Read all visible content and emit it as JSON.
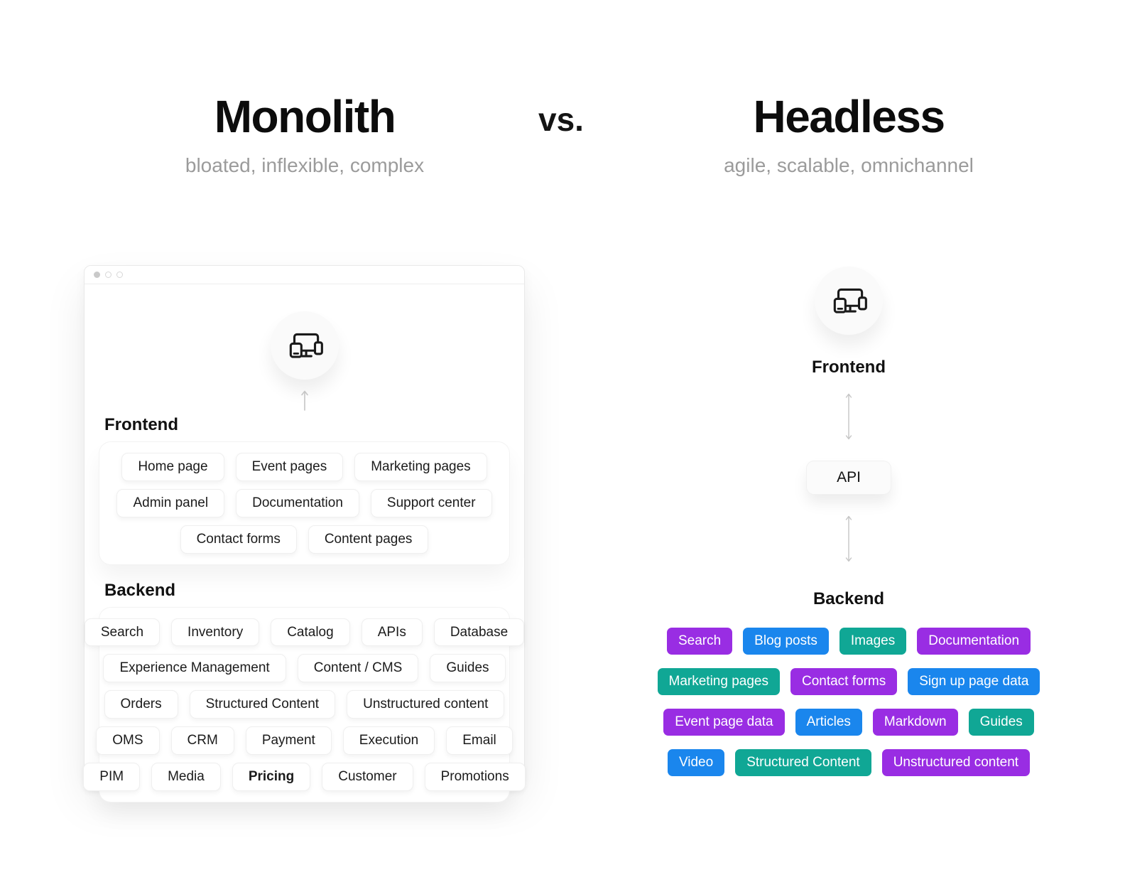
{
  "comparison": {
    "left": {
      "title": "Monolith",
      "subtitle": "bloated, inflexible, complex"
    },
    "separator": "vs.",
    "right": {
      "title": "Headless",
      "subtitle": "agile, scalable, omnichannel"
    }
  },
  "monolith_window": {
    "frontend_label": "Frontend",
    "backend_label": "Backend",
    "frontend_modules": [
      [
        "Home page",
        "Event pages",
        "Marketing pages"
      ],
      [
        "Admin panel",
        "Documentation",
        "Support center"
      ],
      [
        "Contact forms",
        "Content pages"
      ]
    ],
    "backend_modules": [
      [
        "Search",
        "Inventory",
        "Catalog",
        "APIs",
        "Database"
      ],
      [
        "Experience Management",
        "Content / CMS",
        "Guides"
      ],
      [
        "Orders",
        "Structured Content",
        "Unstructured content"
      ],
      [
        "OMS",
        "CRM",
        "Payment",
        "Execution",
        "Email"
      ],
      [
        "PIM",
        "Media",
        {
          "label": "Pricing",
          "emphasis": true
        },
        "Customer",
        "Promotions"
      ]
    ]
  },
  "headless_stack": {
    "frontend_label": "Frontend",
    "api_label": "API",
    "backend_label": "Backend",
    "content_chips": [
      [
        {
          "label": "Search",
          "color": "purple"
        },
        {
          "label": "Blog posts",
          "color": "blue"
        },
        {
          "label": "Images",
          "color": "teal"
        },
        {
          "label": "Documentation",
          "color": "purple"
        }
      ],
      [
        {
          "label": "Marketing pages",
          "color": "teal"
        },
        {
          "label": "Contact forms",
          "color": "purple"
        },
        {
          "label": "Sign up page data",
          "color": "blue"
        }
      ],
      [
        {
          "label": "Event page data",
          "color": "purple"
        },
        {
          "label": "Articles",
          "color": "blue"
        },
        {
          "label": "Markdown",
          "color": "purple"
        },
        {
          "label": "Guides",
          "color": "teal"
        }
      ],
      [
        {
          "label": "Video",
          "color": "blue"
        },
        {
          "label": "Structured Content",
          "color": "teal"
        },
        {
          "label": "Unstructured content",
          "color": "purple"
        }
      ]
    ]
  },
  "colors": {
    "purple": "#992DE3",
    "blue": "#1A86ED",
    "teal": "#10A795"
  },
  "icons": {
    "devices": "devices-icon",
    "arrow_up": "arrow-up-icon",
    "arrow_double": "arrow-vertical-double-icon",
    "window_dots": "window-control-dots"
  }
}
